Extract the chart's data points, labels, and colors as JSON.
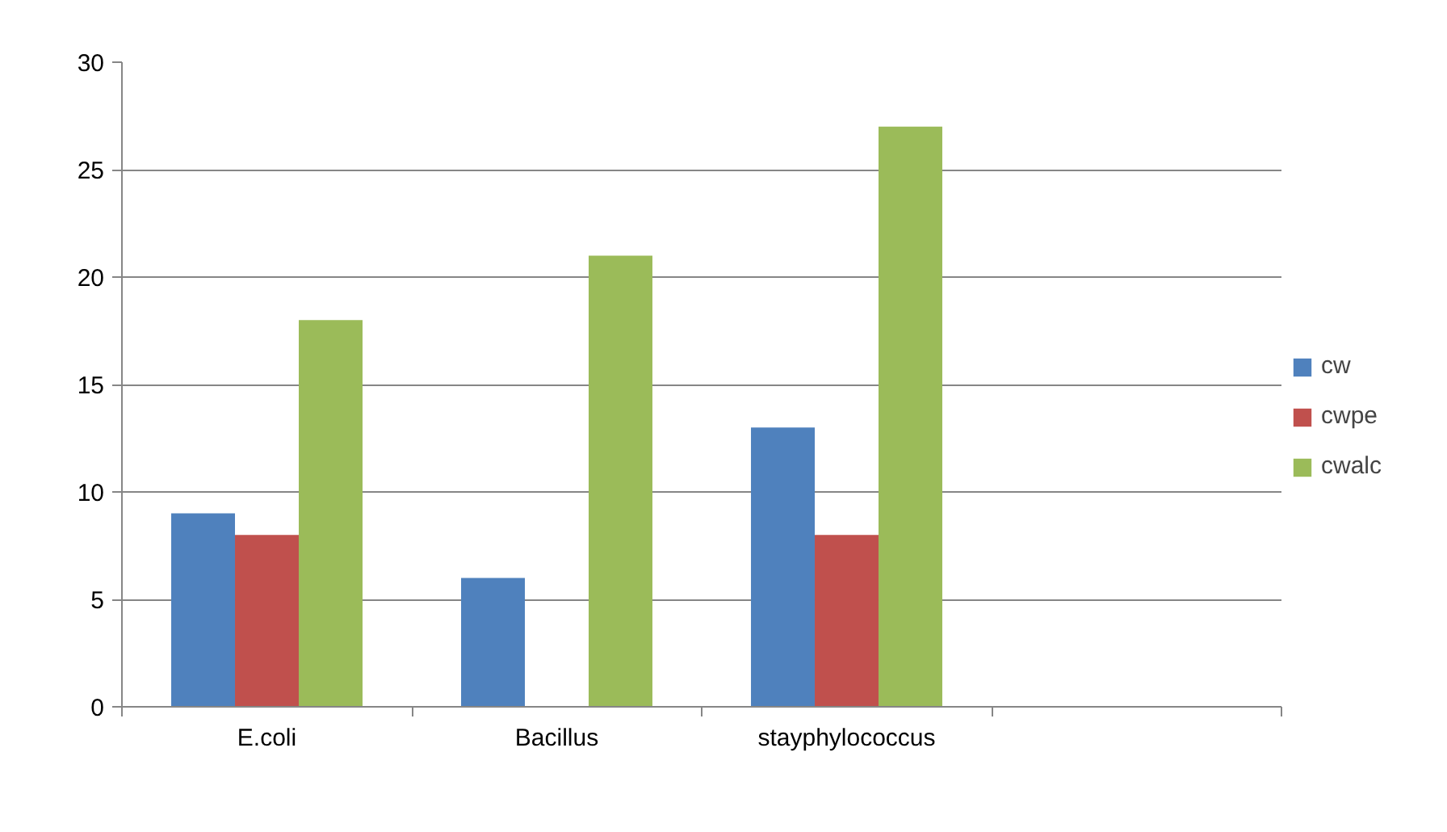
{
  "chart_data": {
    "type": "bar",
    "categories": [
      "E.coli",
      "Bacillus",
      "stayphylococcus",
      null
    ],
    "series": [
      {
        "name": "cw",
        "color": "#4f81bd",
        "values": [
          9,
          6,
          13,
          null
        ]
      },
      {
        "name": "cwpe",
        "color": "#c0504d",
        "values": [
          8,
          null,
          8,
          null
        ]
      },
      {
        "name": "cwalc",
        "color": "#9bbb59",
        "values": [
          18,
          21,
          27,
          null
        ]
      }
    ],
    "ylim": [
      0,
      30
    ],
    "yticks": [
      0,
      5,
      10,
      15,
      20,
      25,
      30
    ],
    "grid": "y",
    "legend": "right"
  }
}
